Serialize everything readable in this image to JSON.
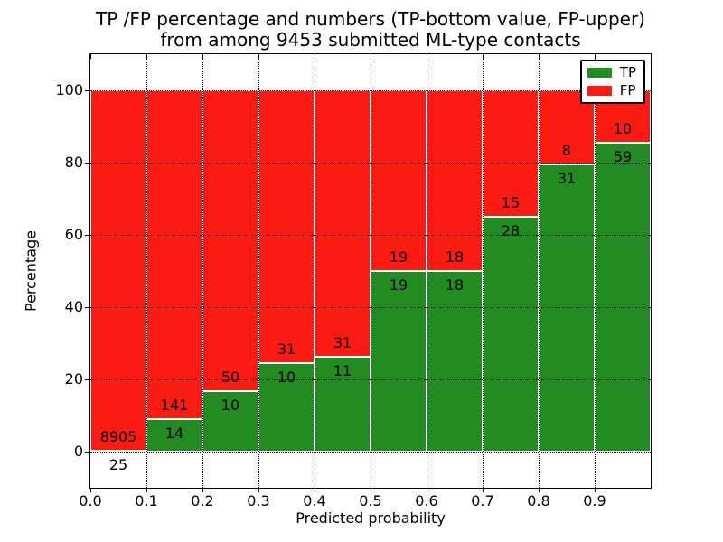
{
  "chart_data": {
    "type": "bar",
    "stacked": true,
    "normalized_to_percent": true,
    "title": "TP /FP percentage and numbers (TP-bottom value, FP-upper)\nfrom among 9453 submitted ML-type contacts",
    "title_lines": [
      "TP /FP percentage and numbers (TP-bottom value, FP-upper)",
      "from among 9453 submitted ML-type contacts"
    ],
    "xlabel": "Predicted probability",
    "ylabel": "Percentage",
    "total_contacts": 9453,
    "xlim": [
      0.0,
      1.0
    ],
    "ylim": [
      -10,
      110
    ],
    "bin_width": 0.1,
    "bin_starts": [
      0.0,
      0.1,
      0.2,
      0.3,
      0.4,
      0.5,
      0.6,
      0.7,
      0.8,
      0.9
    ],
    "categories": [
      "0.0-0.1",
      "0.1-0.2",
      "0.2-0.3",
      "0.3-0.4",
      "0.4-0.5",
      "0.5-0.6",
      "0.6-0.7",
      "0.7-0.8",
      "0.8-0.9",
      "0.9-1.0"
    ],
    "series": [
      {
        "name": "TP",
        "color": "#228b22",
        "counts": [
          25,
          14,
          10,
          10,
          11,
          19,
          18,
          28,
          31,
          59
        ]
      },
      {
        "name": "FP",
        "color": "#fc1b13",
        "counts": [
          8905,
          141,
          50,
          31,
          31,
          19,
          18,
          15,
          8,
          10
        ]
      }
    ],
    "xticks": [
      "0.0",
      "0.1",
      "0.2",
      "0.3",
      "0.4",
      "0.5",
      "0.6",
      "0.7",
      "0.8",
      "0.9"
    ],
    "yticks": [
      0,
      20,
      40,
      60,
      80,
      100
    ],
    "grid": "dotted, both axes, on top of bars",
    "legend_position": "upper right",
    "bar_edge_color": "#ffffff",
    "text_color": "#000000"
  }
}
